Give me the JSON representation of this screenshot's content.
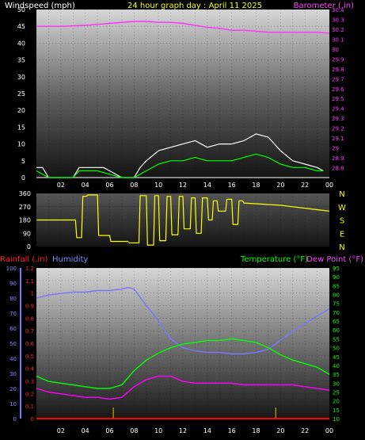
{
  "title": "24 hour graph day : April 11 2025",
  "chart_data": [
    {
      "type": "line",
      "panel": "wind-barometer",
      "left_label": "Windspeed (mph)",
      "right_label": "Barometer (.in)",
      "left_ylim": [
        0,
        50
      ],
      "left_ticks": [
        "0",
        "5",
        "10",
        "15",
        "20",
        "25",
        "30",
        "35",
        "40",
        "45",
        "50"
      ],
      "right_ylim": [
        28.7,
        30.4
      ],
      "right_ticks": [
        "28.8",
        "28.9",
        "29",
        "29.1",
        "29.2",
        "29.3",
        "29.4",
        "29.5",
        "29.6",
        "29.7",
        "29.8",
        "29.9",
        "30",
        "30.1",
        "30.2",
        "30.3",
        "30.4"
      ],
      "xlim": [
        0,
        24
      ],
      "x_ticks": [
        "02",
        "04",
        "06",
        "08",
        "10",
        "12",
        "14",
        "16",
        "18",
        "20",
        "22",
        "00"
      ],
      "series": [
        {
          "role": "barometer",
          "color": "#ff33ff",
          "x": [
            0,
            2,
            4,
            6,
            8,
            9,
            10,
            11,
            12,
            13,
            14,
            15,
            16,
            17,
            18,
            19,
            20,
            21,
            22,
            23,
            24
          ],
          "y": [
            30.23,
            30.23,
            30.24,
            30.26,
            30.28,
            30.28,
            30.27,
            30.27,
            30.26,
            30.24,
            30.22,
            30.21,
            30.19,
            30.19,
            30.18,
            30.17,
            30.17,
            30.17,
            30.17,
            30.17,
            30.16
          ]
        },
        {
          "role": "wind-gust",
          "color": "#ffffff",
          "x": [
            0,
            0.5,
            1,
            2,
            3,
            3.5,
            4,
            5,
            5.5,
            6,
            7,
            8,
            8.5,
            9,
            10,
            11,
            12,
            13,
            14,
            15,
            16,
            17,
            18,
            19,
            20,
            21,
            22,
            23,
            23.5
          ],
          "y": [
            3,
            3,
            0,
            0,
            0,
            3,
            3,
            3,
            3,
            2,
            0,
            0,
            3,
            5,
            8,
            9,
            10,
            11,
            9,
            10,
            10,
            11,
            13,
            12,
            8,
            5,
            4,
            3,
            2
          ]
        },
        {
          "role": "wind-average",
          "color": "#00ff00",
          "x": [
            0,
            1,
            2,
            3,
            3.5,
            4,
            5,
            6,
            7,
            8,
            8.5,
            9,
            10,
            11,
            12,
            13,
            14,
            15,
            16,
            17,
            18,
            19,
            20,
            21,
            22,
            23,
            23.5
          ],
          "y": [
            2,
            0,
            0,
            0,
            2,
            2,
            2,
            1,
            0,
            0,
            1,
            2,
            4,
            5,
            5,
            6,
            5,
            5,
            5,
            6,
            7,
            6,
            4,
            3,
            3,
            2,
            2
          ]
        }
      ]
    },
    {
      "type": "line",
      "panel": "wind-direction",
      "left_ylim": [
        0,
        360
      ],
      "left_ticks": [
        "0",
        "90",
        "180",
        "270",
        "360"
      ],
      "right_labels": [
        "N",
        "W",
        "S",
        "E",
        "N"
      ],
      "xlim": [
        0,
        24
      ],
      "series": [
        {
          "role": "direction",
          "color": "#ffff00",
          "x": [
            0,
            3.2,
            3.3,
            3.7,
            3.8,
            4.1,
            4.2,
            5,
            5.1,
            6,
            6.1,
            7.5,
            7.6,
            8.4,
            8.5,
            9,
            9.1,
            9.6,
            9.7,
            10,
            10.1,
            10.6,
            10.7,
            11,
            11.1,
            11.6,
            11.7,
            12,
            12.1,
            12.6,
            12.7,
            13,
            13.1,
            13.5,
            13.6,
            14,
            14.1,
            14.4,
            14.5,
            14.8,
            14.9,
            15.5,
            15.6,
            16,
            16.1,
            16.5,
            16.6,
            16.9,
            17,
            18,
            19,
            20,
            21,
            22,
            23,
            24
          ],
          "y": [
            180,
            180,
            60,
            60,
            340,
            340,
            350,
            350,
            75,
            75,
            35,
            35,
            25,
            25,
            345,
            345,
            10,
            10,
            345,
            345,
            40,
            40,
            340,
            340,
            80,
            80,
            340,
            340,
            120,
            120,
            330,
            330,
            90,
            90,
            330,
            330,
            180,
            180,
            310,
            310,
            240,
            240,
            320,
            320,
            150,
            150,
            310,
            310,
            295,
            290,
            285,
            280,
            270,
            260,
            250,
            240
          ]
        }
      ]
    },
    {
      "type": "line",
      "panel": "rain-humidity-temp",
      "left_label_rain": "Rainfall (.in)",
      "left_label_humidity": "Humidity",
      "right_label_temp": "Temperature (°F)",
      "right_label_dew": "Dew Point (°F)",
      "rain_ylim": [
        0,
        1.2
      ],
      "rain_ticks": [
        "0",
        "0.1",
        "0.2",
        "0.3",
        "0.4",
        "0.5",
        "0.6",
        "0.7",
        "0.8",
        "0.9",
        "1",
        "1.1",
        "1.2"
      ],
      "humidity_ylim": [
        0,
        100
      ],
      "humidity_ticks": [
        "0",
        "10",
        "20",
        "30",
        "40",
        "50",
        "60",
        "70",
        "80",
        "90",
        "100"
      ],
      "temp_ylim": [
        10,
        95
      ],
      "temp_ticks": [
        "10",
        "15",
        "20",
        "25",
        "30",
        "35",
        "40",
        "45",
        "50",
        "55",
        "60",
        "65",
        "70",
        "75",
        "80",
        "85",
        "90",
        "95"
      ],
      "xlim": [
        0,
        24
      ],
      "x_ticks": [
        "02",
        "04",
        "06",
        "08",
        "10",
        "12",
        "14",
        "16",
        "18",
        "20",
        "22",
        "00"
      ],
      "series": [
        {
          "role": "humidity",
          "color": "#7777ff",
          "x": [
            0,
            1,
            2,
            3,
            4,
            5,
            6,
            7,
            7.5,
            8,
            9,
            10,
            11,
            11.5,
            12,
            13,
            14,
            15,
            16,
            17,
            18,
            19,
            20,
            21,
            22,
            23,
            24
          ],
          "y": [
            80,
            82,
            83,
            84,
            84,
            85,
            85,
            86,
            87,
            86,
            75,
            65,
            53,
            50,
            47,
            45,
            44,
            44,
            43,
            43,
            44,
            46,
            52,
            58,
            63,
            68,
            73
          ]
        },
        {
          "role": "temperature",
          "color": "#00ff00",
          "x": [
            0,
            1,
            2,
            3,
            4,
            5,
            6,
            7,
            8,
            9,
            10,
            11,
            12,
            13,
            14,
            15,
            16,
            17,
            18,
            19,
            20,
            21,
            22,
            23,
            24
          ],
          "y": [
            34,
            31,
            30,
            29,
            28,
            27,
            27,
            29,
            37,
            43,
            47,
            50,
            52,
            53,
            54,
            54,
            55,
            54,
            53,
            50,
            46,
            43,
            41,
            39,
            35
          ]
        },
        {
          "role": "dew-point",
          "color": "#ff00ff",
          "x": [
            0,
            1,
            2,
            3,
            4,
            5,
            6,
            7,
            8,
            9,
            10,
            11,
            12,
            13,
            14,
            15,
            16,
            17,
            18,
            19,
            20,
            21,
            22,
            23,
            24
          ],
          "y": [
            27,
            25,
            24,
            23,
            22,
            22,
            21,
            22,
            28,
            32,
            34,
            34,
            31,
            30,
            30,
            30,
            30,
            29,
            29,
            29,
            29,
            29,
            28,
            27,
            26
          ]
        },
        {
          "role": "rainfall",
          "color": "#ff0000",
          "x": [
            0,
            24
          ],
          "y": [
            0,
            0
          ]
        }
      ]
    }
  ]
}
